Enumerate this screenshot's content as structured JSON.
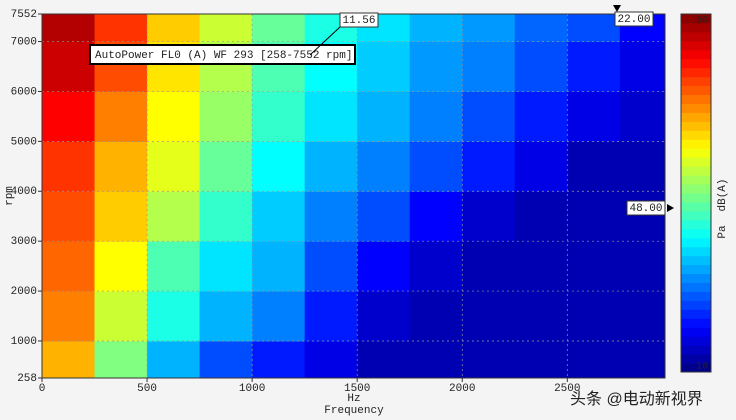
{
  "chart_data": {
    "type": "heatmap",
    "annotation": "AutoPower FL0 (A) WF 293 [258-7552 rpm]",
    "cursors": [
      "11.56",
      "22.00",
      "48.00"
    ],
    "xlabel_unit": "Hz",
    "xlabel": "Frequency",
    "ylabel": "rpm",
    "colorbar_label": "dB(A)",
    "colorbar_unit": "Pa",
    "colormap": "jet",
    "clim": [
      10,
      50
    ],
    "cticks": [
      10,
      50
    ],
    "xlim": [
      0,
      2965
    ],
    "xticks": [
      0,
      500,
      1000,
      1500,
      2000,
      2500
    ],
    "ylim": [
      258,
      7552
    ],
    "yticks": [
      258,
      1000,
      2000,
      3000,
      4000,
      5000,
      6000,
      7000,
      7552
    ],
    "grid": true,
    "xbins": [
      0,
      250,
      500,
      750,
      1000,
      1250,
      1500,
      1750,
      2000,
      2250,
      2500,
      2750,
      2965
    ],
    "ybins": [
      258,
      1000,
      2000,
      3000,
      4000,
      5000,
      6000,
      7000,
      7552
    ],
    "z": [
      [
        38,
        30,
        22,
        18,
        16,
        14,
        12,
        12,
        12,
        12,
        12,
        12
      ],
      [
        40,
        33,
        26,
        22,
        20,
        16,
        13,
        12,
        12,
        12,
        12,
        12
      ],
      [
        41,
        35,
        28,
        24,
        22,
        18,
        15,
        13,
        12,
        12,
        12,
        12
      ],
      [
        42,
        37,
        32,
        27,
        23,
        20,
        18,
        15,
        13,
        12,
        12,
        12
      ],
      [
        43,
        38,
        34,
        29,
        25,
        22,
        20,
        18,
        16,
        14,
        12,
        12
      ],
      [
        45,
        40,
        35,
        31,
        27,
        24,
        22,
        20,
        18,
        16,
        14,
        13
      ],
      [
        47,
        42,
        36,
        32,
        28,
        25,
        23,
        21,
        20,
        18,
        16,
        14
      ],
      [
        48,
        43,
        37,
        33,
        29,
        26,
        24,
        22,
        21,
        19,
        18,
        15
      ]
    ]
  },
  "watermark": "头条 @电动新视界"
}
